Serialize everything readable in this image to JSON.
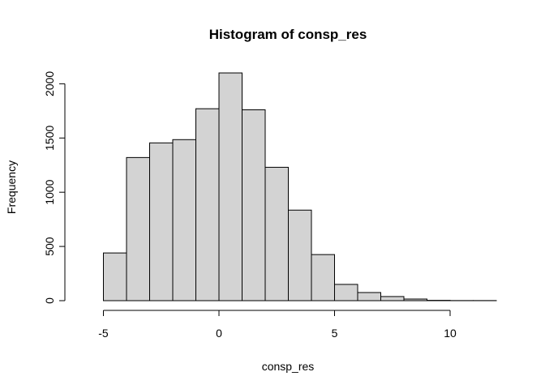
{
  "chart_data": {
    "type": "bar",
    "title": "Histogram of consp_res",
    "xlabel": "consp_res",
    "ylabel": "Frequency",
    "xlim": [
      -6,
      12
    ],
    "ylim": [
      0,
      2100
    ],
    "x_ticks": [
      -5,
      0,
      5,
      10
    ],
    "y_ticks": [
      0,
      500,
      1000,
      1500,
      2000
    ],
    "bar_fill": "#d3d3d3",
    "bar_stroke": "#000000",
    "grid": false,
    "bins": [
      {
        "x0": -5,
        "x1": -4,
        "value": 440
      },
      {
        "x0": -4,
        "x1": -3,
        "value": 1320
      },
      {
        "x0": -3,
        "x1": -2,
        "value": 1455
      },
      {
        "x0": -2,
        "x1": -1,
        "value": 1485
      },
      {
        "x0": -1,
        "x1": 0,
        "value": 1770
      },
      {
        "x0": 0,
        "x1": 1,
        "value": 2100
      },
      {
        "x0": 1,
        "x1": 2,
        "value": 1760
      },
      {
        "x0": 2,
        "x1": 3,
        "value": 1230
      },
      {
        "x0": 3,
        "x1": 4,
        "value": 835
      },
      {
        "x0": 4,
        "x1": 5,
        "value": 425
      },
      {
        "x0": 5,
        "x1": 6,
        "value": 150
      },
      {
        "x0": 6,
        "x1": 7,
        "value": 75
      },
      {
        "x0": 7,
        "x1": 8,
        "value": 38
      },
      {
        "x0": 8,
        "x1": 9,
        "value": 15
      },
      {
        "x0": 9,
        "x1": 10,
        "value": 3
      },
      {
        "x0": 10,
        "x1": 11,
        "value": 1
      },
      {
        "x0": 11,
        "x1": 12,
        "value": 1
      }
    ]
  }
}
